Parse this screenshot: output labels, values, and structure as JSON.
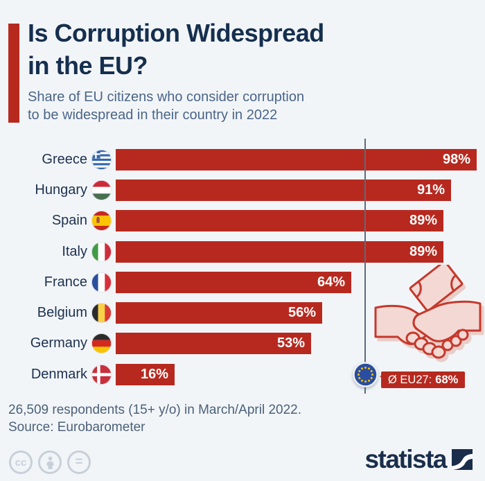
{
  "header": {
    "title_line1": "Is Corruption Widespread",
    "title_line2": "in the EU?",
    "subtitle_line1": "Share of EU citizens who consider corruption",
    "subtitle_line2": "to be widespread in their country in 2022"
  },
  "chart_data": {
    "type": "bar",
    "orientation": "horizontal",
    "unit": "%",
    "categories": [
      "Greece",
      "Hungary",
      "Spain",
      "Italy",
      "France",
      "Belgium",
      "Germany",
      "Denmark"
    ],
    "values": [
      98,
      91,
      89,
      89,
      64,
      56,
      53,
      16
    ],
    "flags": [
      "gr",
      "hu",
      "es",
      "it",
      "fr",
      "be",
      "de",
      "dk"
    ],
    "xlim": [
      0,
      100
    ],
    "grid": false,
    "bar_color": "#b7291f",
    "average": {
      "prefix": "Ø EU27:",
      "value": 68,
      "value_label": "68%",
      "marker": "eu-flag-icon"
    }
  },
  "footer": {
    "note": "26,509 respondents (15+ y/o) in March/April 2022.",
    "source": "Source: Eurobarometer"
  },
  "brand": {
    "wordmark": "statista",
    "mark": "statista-logo-mark"
  },
  "icons": {
    "license": [
      "cc-icon",
      "attribution-person-icon",
      "equal-sign-icon"
    ],
    "license_labels": [
      "cc",
      "",
      "="
    ],
    "illustration": "handshake-money-icon"
  },
  "colors": {
    "background": "#f2f5f8",
    "bar_red": "#b7291f",
    "title_navy": "#152f4e",
    "subtitle_slate": "#4a6588",
    "avg_line": "#5b6b7c",
    "eu_blue": "#2b4da0",
    "eu_star_gold": "#f2c500",
    "illustration_pink": "#f4d8d4",
    "license_gray": "#c7d0da"
  }
}
